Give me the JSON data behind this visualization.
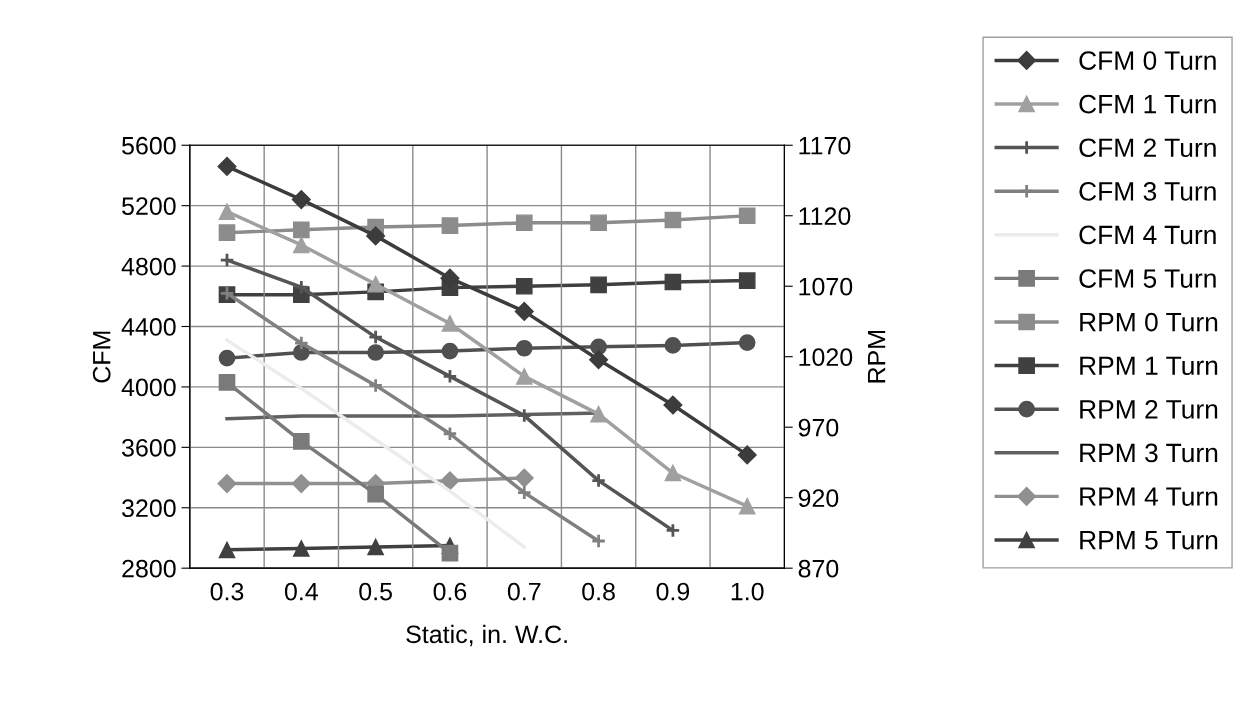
{
  "chart_data": {
    "type": "line",
    "xlabel": "Static, in. W.C.",
    "ylabel": "CFM",
    "y2label": "RPM",
    "categories": [
      "0.3",
      "0.4",
      "0.5",
      "0.6",
      "0.7",
      "0.8",
      "0.9",
      "1.0"
    ],
    "ylim": [
      2800,
      5600
    ],
    "yticks": [
      2800,
      3200,
      3600,
      4000,
      4400,
      4800,
      5200,
      5600
    ],
    "y2lim": [
      870,
      1170
    ],
    "y2ticks": [
      870,
      920,
      970,
      1020,
      1070,
      1120,
      1170
    ],
    "grid": true,
    "legend": "right",
    "series": [
      {
        "name": "CFM 0 Turn",
        "color": "#3c3c3c",
        "marker": "diamond",
        "values": [
          5460,
          5240,
          5000,
          4720,
          4500,
          4180,
          3880,
          3550
        ]
      },
      {
        "name": "CFM 1 Turn",
        "color": "#a0a0a0",
        "marker": "triangle",
        "values": [
          5160,
          4940,
          4680,
          4420,
          4070,
          3820,
          3430,
          3210
        ]
      },
      {
        "name": "CFM 2 Turn",
        "color": "#555555",
        "marker": "cross",
        "values": [
          4840,
          4660,
          4330,
          4070,
          3810,
          3380,
          3050,
          null
        ]
      },
      {
        "name": "CFM 3 Turn",
        "color": "#808080",
        "marker": "cross",
        "values": [
          4620,
          4290,
          4010,
          3690,
          3300,
          2980,
          null,
          null
        ]
      },
      {
        "name": "CFM 4 Turn",
        "color": "#ececec",
        "marker": "none",
        "values": [
          4310,
          3990,
          3650,
          3310,
          2940,
          null,
          null,
          null
        ]
      },
      {
        "name": "CFM 5 Turn",
        "color": "#7a7a7a",
        "marker": "square",
        "values": [
          4030,
          3640,
          3290,
          2900,
          null,
          null,
          null,
          null
        ]
      },
      {
        "name": "RPM 0 Turn",
        "color": "#8c8c8c",
        "marker": "square",
        "axis": "y2",
        "values": [
          1108,
          1110,
          1112,
          1113,
          1115,
          1115,
          1117,
          1120
        ]
      },
      {
        "name": "RPM 1 Turn",
        "color": "#404040",
        "marker": "square",
        "axis": "y2",
        "values": [
          1064,
          1064,
          1066,
          1069,
          1070,
          1071,
          1073,
          1074
        ]
      },
      {
        "name": "RPM 2 Turn",
        "color": "#505050",
        "marker": "circle",
        "axis": "y2",
        "values": [
          1019,
          1023,
          1023,
          1024,
          1026,
          1027,
          1028,
          1030
        ]
      },
      {
        "name": "RPM 3 Turn",
        "color": "#606060",
        "marker": "none",
        "axis": "y2",
        "values": [
          976,
          978,
          978,
          978,
          979,
          980,
          null,
          null
        ]
      },
      {
        "name": "RPM 4 Turn",
        "color": "#909090",
        "marker": "diamond",
        "axis": "y2",
        "values": [
          930,
          930,
          930,
          932,
          934,
          null,
          null,
          null
        ]
      },
      {
        "name": "RPM 5 Turn",
        "color": "#404040",
        "marker": "triangle",
        "axis": "y2",
        "values": [
          883,
          884,
          885,
          886,
          null,
          null,
          null,
          null
        ]
      }
    ]
  }
}
